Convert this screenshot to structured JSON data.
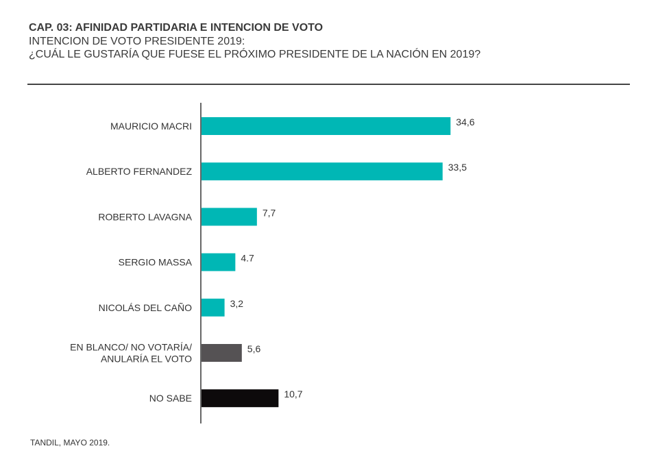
{
  "header": {
    "title": "CAP. 03: AFINIDAD PARTIDARIA E INTENCION DE VOTO",
    "subtitle_line1": "INTENCION DE VOTO PRESIDENTE 2019:",
    "subtitle_line2": "¿CUÁL LE GUSTARÍA QUE FUESE EL PRÓXIMO PRESIDENTE DE LA NACIÓN EN 2019?"
  },
  "footer": {
    "text": "TANDIL, MAYO 2019."
  },
  "chart_data": {
    "type": "bar",
    "orientation": "horizontal",
    "categories": [
      [
        "MAURICIO MACRI"
      ],
      [
        "ALBERTO FERNANDEZ"
      ],
      [
        "ROBERTO LAVAGNA"
      ],
      [
        "SERGIO MASSA"
      ],
      [
        "NICOLÁS DEL CAÑO"
      ],
      [
        "EN BLANCO/ NO VOTARÍA/",
        "ANULARÍA EL VOTO"
      ],
      [
        "NO SABE"
      ]
    ],
    "values": [
      34.6,
      33.5,
      7.7,
      4.7,
      3.2,
      5.6,
      10.7
    ],
    "value_labels": [
      "34,6",
      "33,5",
      "7,7",
      "4.7",
      "3,2",
      "5,6",
      "10,7"
    ],
    "colors": [
      "#00b7b5",
      "#00b7b5",
      "#00b7b5",
      "#00b7b5",
      "#00b7b5",
      "#555254",
      "#0d0a0b"
    ],
    "xlim": [
      0,
      60
    ],
    "grid": false,
    "legend": "none"
  }
}
